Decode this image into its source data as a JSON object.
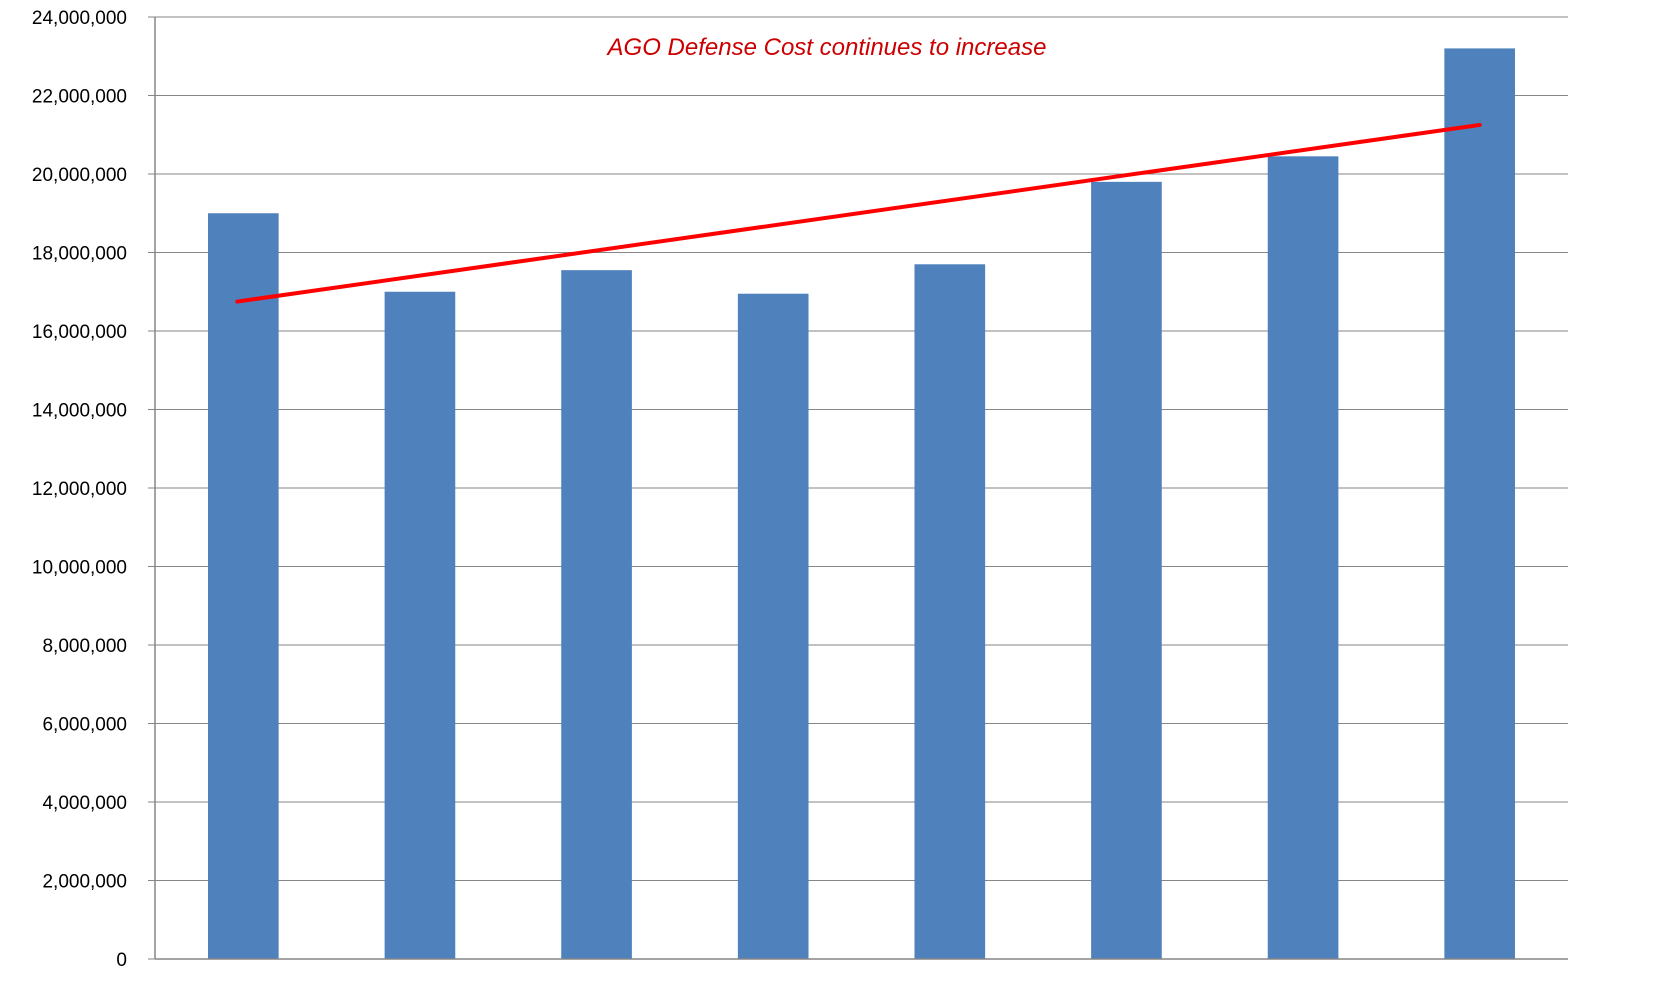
{
  "chart_data": {
    "type": "bar",
    "title": "",
    "xlabel": "",
    "ylabel": "",
    "categories": [
      "",
      "",
      "",
      "",
      "",
      "",
      "",
      ""
    ],
    "values": [
      19000000,
      17000000,
      17550000,
      16950000,
      17700000,
      19800000,
      20450000,
      23200000
    ],
    "ylim": [
      0,
      24000000
    ],
    "yticks": [
      0,
      2000000,
      4000000,
      6000000,
      8000000,
      10000000,
      12000000,
      14000000,
      16000000,
      18000000,
      20000000,
      22000000,
      24000000
    ],
    "ytick_labels": [
      "0",
      "2,000,000",
      "4,000,000",
      "6,000,000",
      "8,000,000",
      "10,000,000",
      "12,000,000",
      "14,000,000",
      "16,000,000",
      "18,000,000",
      "20,000,000",
      "22,000,000",
      "24,000,000"
    ],
    "grid": true,
    "trendline": {
      "type": "linear",
      "start_value": 16750000,
      "end_value": 21250000
    },
    "annotation": "AGO Defense Cost continues to increase",
    "colors": {
      "bar": "#4F81BD",
      "trendline": "#FF0000",
      "annotation": "#CC0000",
      "grid": "#868686",
      "axis": "#868686"
    }
  }
}
